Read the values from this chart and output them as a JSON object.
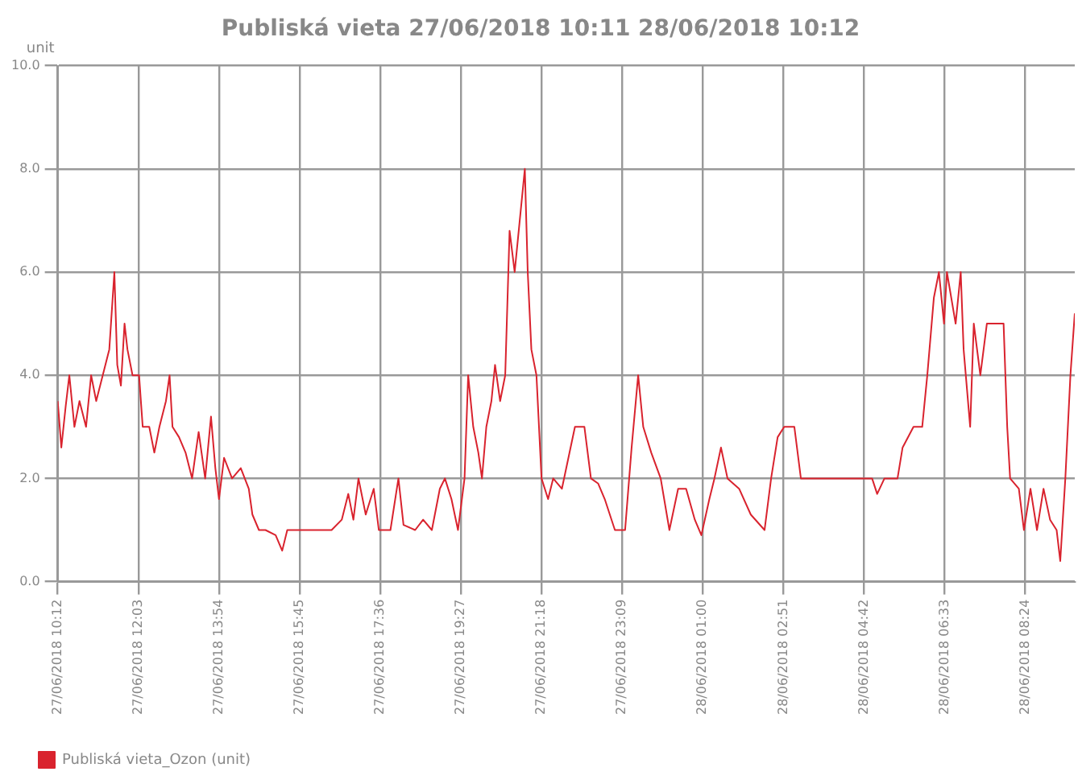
{
  "chart_data": {
    "type": "line",
    "title": "Publiská vieta 27/06/2018 10:11 28/06/2018 10:12",
    "ylabel": "unit",
    "xlim": [
      "2018-06-27T10:12",
      "2018-06-28T09:32"
    ],
    "xticks": [
      {
        "value": "2018-06-27T10:12",
        "label": "27/06/2018 10:12"
      },
      {
        "value": "2018-06-27T12:03",
        "label": "27/06/2018 12:03"
      },
      {
        "value": "2018-06-27T13:54",
        "label": "27/06/2018 13:54"
      },
      {
        "value": "2018-06-27T15:45",
        "label": "27/06/2018 15:45"
      },
      {
        "value": "2018-06-27T17:36",
        "label": "27/06/2018 17:36"
      },
      {
        "value": "2018-06-27T19:27",
        "label": "27/06/2018 19:27"
      },
      {
        "value": "2018-06-27T21:18",
        "label": "27/06/2018 21:18"
      },
      {
        "value": "2018-06-27T23:09",
        "label": "27/06/2018 23:09"
      },
      {
        "value": "2018-06-28T01:00",
        "label": "28/06/2018 01:00"
      },
      {
        "value": "2018-06-28T02:51",
        "label": "28/06/2018 02:51"
      },
      {
        "value": "2018-06-28T04:42",
        "label": "28/06/2018 04:42"
      },
      {
        "value": "2018-06-28T06:33",
        "label": "28/06/2018 06:33"
      },
      {
        "value": "2018-06-28T08:24",
        "label": "28/06/2018 08:24"
      }
    ],
    "ylim": [
      0,
      10
    ],
    "yticks": [
      {
        "value": 0,
        "label": "0.0"
      },
      {
        "value": 2,
        "label": "2.0"
      },
      {
        "value": 4,
        "label": "4.0"
      },
      {
        "value": 6,
        "label": "6.0"
      },
      {
        "value": 8,
        "label": "8.0"
      },
      {
        "value": 10,
        "label": "10.0"
      }
    ],
    "grid": true,
    "legend": "bottom",
    "marker": "none",
    "line_style": "solid",
    "series": [
      {
        "name": "Publiská vieta_Ozon (unit)",
        "color": "#d9232e",
        "x": [
          "2018-06-27T10:12",
          "2018-06-27T10:17",
          "2018-06-27T10:23",
          "2018-06-27T10:28",
          "2018-06-27T10:35",
          "2018-06-27T10:42",
          "2018-06-27T10:51",
          "2018-06-27T10:58",
          "2018-06-27T11:05",
          "2018-06-27T11:14",
          "2018-06-27T11:23",
          "2018-06-27T11:30",
          "2018-06-27T11:34",
          "2018-06-27T11:39",
          "2018-06-27T11:44",
          "2018-06-27T11:48",
          "2018-06-27T11:55",
          "2018-06-27T12:04",
          "2018-06-27T12:09",
          "2018-06-27T12:18",
          "2018-06-27T12:25",
          "2018-06-27T12:32",
          "2018-06-27T12:41",
          "2018-06-27T12:46",
          "2018-06-27T12:50",
          "2018-06-27T12:59",
          "2018-06-27T13:08",
          "2018-06-27T13:17",
          "2018-06-27T13:26",
          "2018-06-27T13:35",
          "2018-06-27T13:43",
          "2018-06-27T13:49",
          "2018-06-27T13:54",
          "2018-06-27T14:01",
          "2018-06-27T14:12",
          "2018-06-27T14:24",
          "2018-06-27T14:35",
          "2018-06-27T14:40",
          "2018-06-27T14:49",
          "2018-06-27T14:58",
          "2018-06-27T15:12",
          "2018-06-27T15:21",
          "2018-06-27T15:28",
          "2018-06-27T15:44",
          "2018-06-27T16:07",
          "2018-06-27T16:29",
          "2018-06-27T16:43",
          "2018-06-27T16:52",
          "2018-06-27T16:59",
          "2018-06-27T17:06",
          "2018-06-27T17:16",
          "2018-06-27T17:27",
          "2018-06-27T17:34",
          "2018-06-27T17:50",
          "2018-06-27T18:01",
          "2018-06-27T18:08",
          "2018-06-27T18:24",
          "2018-06-27T18:35",
          "2018-06-27T18:47",
          "2018-06-27T18:58",
          "2018-06-27T19:05",
          "2018-06-27T19:14",
          "2018-06-27T19:23",
          "2018-06-27T19:32",
          "2018-06-27T19:37",
          "2018-06-27T19:44",
          "2018-06-27T19:51",
          "2018-06-27T19:56",
          "2018-06-27T20:02",
          "2018-06-27T20:09",
          "2018-06-27T20:14",
          "2018-06-27T20:21",
          "2018-06-27T20:28",
          "2018-06-27T20:34",
          "2018-06-27T20:41",
          "2018-06-27T20:48",
          "2018-06-27T20:55",
          "2018-06-27T20:59",
          "2018-06-27T21:04",
          "2018-06-27T21:11",
          "2018-06-27T21:18",
          "2018-06-27T21:27",
          "2018-06-27T21:34",
          "2018-06-27T21:46",
          "2018-06-27T22:04",
          "2018-06-27T22:17",
          "2018-06-27T22:26",
          "2018-06-27T22:36",
          "2018-06-27T22:45",
          "2018-06-27T22:59",
          "2018-06-27T23:13",
          "2018-06-27T23:22",
          "2018-06-27T23:31",
          "2018-06-27T23:38",
          "2018-06-27T23:49",
          "2018-06-28T00:02",
          "2018-06-28T00:14",
          "2018-06-28T00:26",
          "2018-06-28T00:37",
          "2018-06-28T00:49",
          "2018-06-28T00:58",
          "2018-06-28T01:09",
          "2018-06-28T01:16",
          "2018-06-28T01:25",
          "2018-06-28T01:34",
          "2018-06-28T01:50",
          "2018-06-28T02:06",
          "2018-06-28T02:25",
          "2018-06-28T02:34",
          "2018-06-28T02:43",
          "2018-06-28T02:52",
          "2018-06-28T03:06",
          "2018-06-28T03:15",
          "2018-06-28T03:33",
          "2018-06-28T04:08",
          "2018-06-28T04:53",
          "2018-06-28T05:00",
          "2018-06-28T05:10",
          "2018-06-28T05:28",
          "2018-06-28T05:35",
          "2018-06-28T05:50",
          "2018-06-28T06:02",
          "2018-06-28T06:09",
          "2018-06-28T06:18",
          "2018-06-28T06:25",
          "2018-06-28T06:32",
          "2018-06-28T06:36",
          "2018-06-28T06:48",
          "2018-06-28T06:55",
          "2018-06-28T06:59",
          "2018-06-28T07:08",
          "2018-06-28T07:13",
          "2018-06-28T07:22",
          "2018-06-28T07:31",
          "2018-06-28T07:54",
          "2018-06-28T07:59",
          "2018-06-28T08:03",
          "2018-06-28T08:15",
          "2018-06-28T08:22",
          "2018-06-28T08:31",
          "2018-06-28T08:40",
          "2018-06-28T08:49",
          "2018-06-28T08:58",
          "2018-06-28T09:07",
          "2018-06-28T09:12",
          "2018-06-28T09:19",
          "2018-06-28T09:26",
          "2018-06-28T09:32"
        ],
        "values": [
          3.5,
          2.6,
          3.4,
          4.0,
          3.0,
          3.5,
          3.0,
          4.0,
          3.5,
          4.0,
          4.5,
          6.0,
          4.2,
          3.8,
          5.0,
          4.5,
          4.0,
          4.0,
          3.0,
          3.0,
          2.5,
          3.0,
          3.5,
          4.0,
          3.0,
          2.8,
          2.5,
          2.0,
          2.9,
          2.0,
          3.2,
          2.2,
          1.6,
          2.4,
          2.0,
          2.2,
          1.8,
          1.3,
          1.0,
          1.0,
          0.9,
          0.6,
          1.0,
          1.0,
          1.0,
          1.0,
          1.2,
          1.7,
          1.2,
          2.0,
          1.3,
          1.8,
          1.0,
          1.0,
          2.0,
          1.1,
          1.0,
          1.2,
          1.0,
          1.8,
          2.0,
          1.6,
          1.0,
          2.0,
          4.0,
          3.0,
          2.5,
          2.0,
          3.0,
          3.5,
          4.2,
          3.5,
          4.0,
          6.8,
          6.0,
          7.0,
          8.0,
          6.0,
          4.5,
          4.0,
          2.0,
          1.6,
          2.0,
          1.8,
          3.0,
          3.0,
          2.0,
          1.9,
          1.6,
          1.0,
          1.0,
          2.6,
          4.0,
          3.0,
          2.5,
          2.0,
          1.0,
          1.8,
          1.8,
          1.2,
          0.9,
          1.6,
          2.0,
          2.6,
          2.0,
          1.8,
          1.3,
          1.0,
          2.0,
          2.8,
          3.0,
          3.0,
          2.0,
          2.0,
          2.0,
          2.0,
          1.7,
          2.0,
          2.0,
          2.6,
          3.0,
          3.0,
          4.0,
          5.5,
          6.0,
          5.0,
          6.0,
          5.0,
          6.0,
          4.5,
          3.0,
          5.0,
          4.0,
          5.0,
          5.0,
          3.0,
          2.0,
          1.8,
          1.0,
          1.8,
          1.0,
          1.8,
          1.2,
          1.0,
          0.4,
          2.0,
          4.0,
          5.2
        ]
      }
    ]
  }
}
